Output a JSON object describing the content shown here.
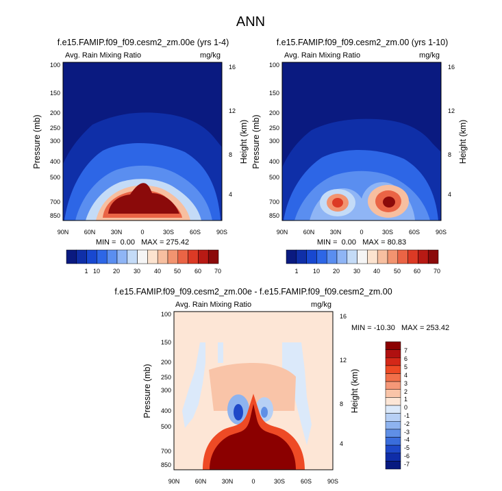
{
  "page_title": "ANN",
  "chart_data": [
    {
      "type": "heatmap",
      "title": "f.e15.FAMIP.f09_f09.cesm2_zm.00e (yrs 1-4)",
      "left_label": "Avg. Rain Mixing Ratio",
      "right_label": "mg/kg",
      "ylabel": "Pressure (mb)",
      "y2label": "Height (km)",
      "xticks": [
        "90N",
        "60N",
        "30N",
        "0",
        "30S",
        "60S",
        "90S"
      ],
      "yticks": [
        "100",
        "150",
        "200",
        "250",
        "300",
        "400",
        "500",
        "700",
        "850"
      ],
      "y2ticks": [
        "16",
        "12",
        "8",
        "4"
      ],
      "stats": "MIN =  0.00   MAX = 275.42",
      "min": 0.0,
      "max": 275.42,
      "colorbar_labels": [
        "1",
        "10",
        "20",
        "30",
        "40",
        "50",
        "60",
        "70"
      ]
    },
    {
      "type": "heatmap",
      "title": "f.e15.FAMIP.f09_f09.cesm2_zm.00 (yrs 1-10)",
      "left_label": "Avg. Rain Mixing Ratio",
      "right_label": "mg/kg",
      "ylabel": "Pressure (mb)",
      "y2label": "Height (km)",
      "xticks": [
        "90N",
        "60N",
        "30N",
        "0",
        "30S",
        "60S",
        "90S"
      ],
      "yticks": [
        "100",
        "150",
        "200",
        "250",
        "300",
        "400",
        "500",
        "700",
        "850"
      ],
      "y2ticks": [
        "16",
        "12",
        "8",
        "4"
      ],
      "stats": "MIN =  0.00   MAX = 80.83",
      "min": 0.0,
      "max": 80.83,
      "colorbar_labels": [
        "1",
        "10",
        "20",
        "30",
        "40",
        "50",
        "60",
        "70"
      ]
    },
    {
      "type": "heatmap",
      "title": "f.e15.FAMIP.f09_f09.cesm2_zm.00e - f.e15.FAMIP.f09_f09.cesm2_zm.00",
      "left_label": "Avg. Rain Mixing Ratio",
      "right_label": "mg/kg",
      "ylabel": "Pressure (mb)",
      "y2label": "Height (km)",
      "xticks": [
        "90N",
        "60N",
        "30N",
        "0",
        "30S",
        "60S",
        "90S"
      ],
      "yticks": [
        "100",
        "150",
        "200",
        "250",
        "300",
        "400",
        "500",
        "700",
        "850"
      ],
      "y2ticks": [
        "16",
        "12",
        "8",
        "4"
      ],
      "stats": "MIN = -10.30   MAX = 253.42",
      "min": -10.3,
      "max": 253.42,
      "colorbar_labels": [
        "7",
        "6",
        "5",
        "4",
        "3",
        "2",
        "1",
        "0",
        "-1",
        "-2",
        "-3",
        "-4",
        "-5",
        "-6",
        "-7"
      ]
    }
  ],
  "colors": {
    "abs_scale": [
      "#0a1a80",
      "#0f2fa8",
      "#1848d0",
      "#2d66e6",
      "#5a8ef0",
      "#8fb5f5",
      "#c4dbf7",
      "#f5f5f5",
      "#fce3cf",
      "#f7bfa0",
      "#f29470",
      "#ea6445",
      "#dc3a25",
      "#b81a14",
      "#8b0a0a"
    ],
    "diff_scale": [
      "#8b0000",
      "#b01010",
      "#d42818",
      "#ee4a25",
      "#f2704a",
      "#f59878",
      "#f9c4a8",
      "#fde6d6",
      "#dbe9fa",
      "#b7d0f5",
      "#8eb3ef",
      "#5f8fe6",
      "#3a6ddc",
      "#1e48c8",
      "#0f2da8",
      "#071a80"
    ]
  }
}
